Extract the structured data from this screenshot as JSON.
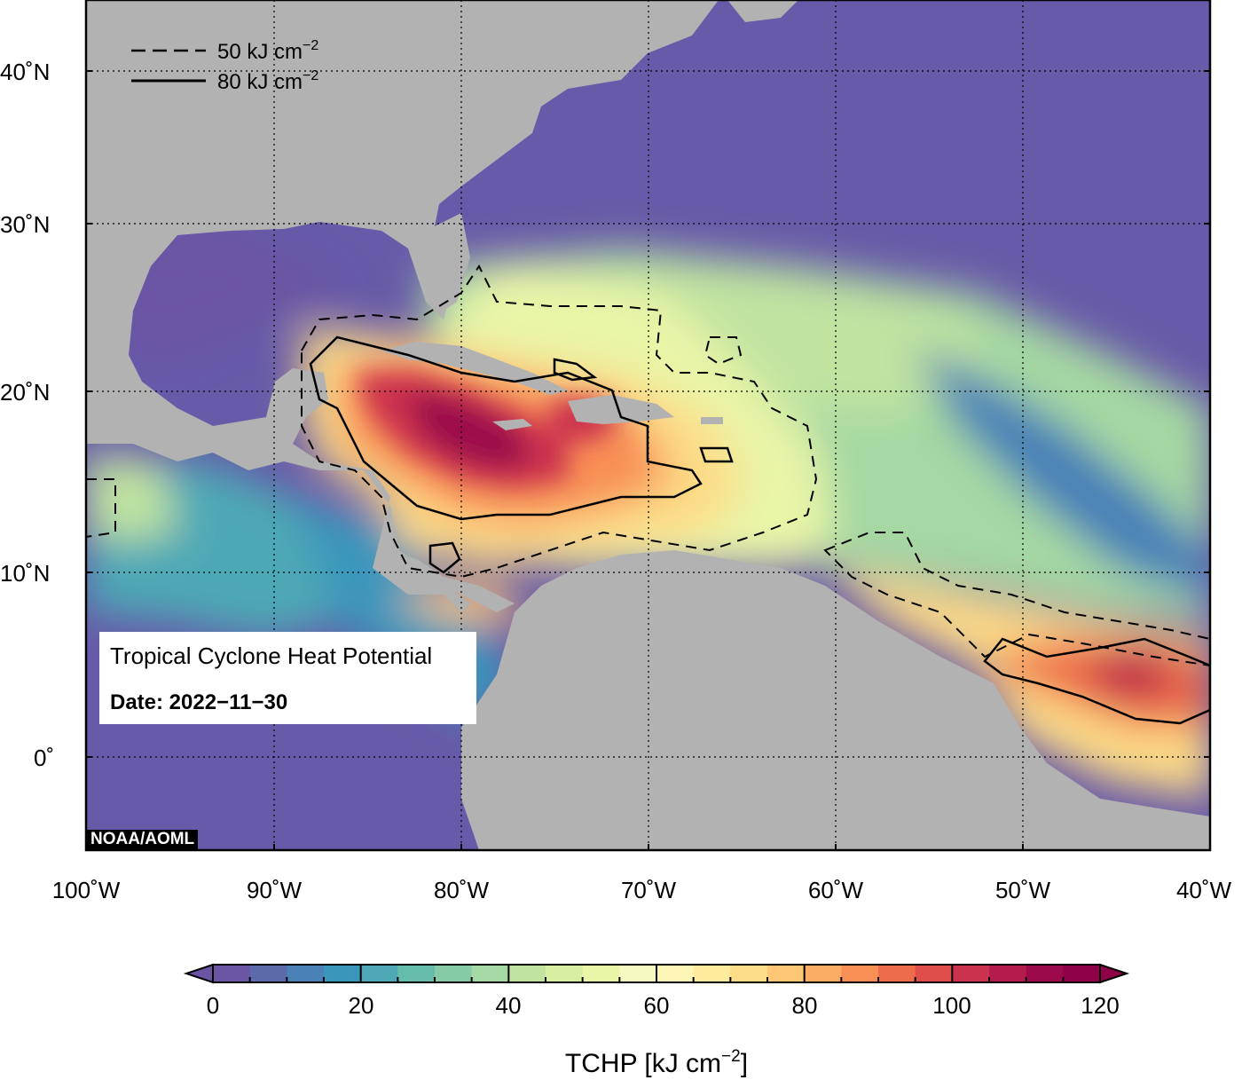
{
  "map": {
    "credit": "NOAA/AOML",
    "info_title": "Tropical Cyclone Heat Potential",
    "info_date": "Date: 2022−11−30",
    "lat_labels": [
      "40˚N",
      "30˚N",
      "20˚N",
      "10˚N",
      "0˚"
    ],
    "lon_labels": [
      "100˚W",
      "90˚W",
      "80˚W",
      "70˚W",
      "60˚W",
      "50˚W",
      "40˚W"
    ],
    "extent": {
      "lon_min": -100,
      "lon_max": -40,
      "lat_min": -5,
      "lat_max": 45
    },
    "colors": {
      "land": "#b2b2b2",
      "low": "#675aa8",
      "mid": "#abdca4",
      "high": "#a10e4d"
    }
  },
  "legend": {
    "dashed": {
      "prefix": "50 kJ cm",
      "sup": "−2"
    },
    "solid": {
      "prefix": "80 kJ cm",
      "sup": "−2"
    }
  },
  "colorbar": {
    "ticks": [
      "0",
      "20",
      "40",
      "60",
      "80",
      "100",
      "120"
    ],
    "title_prefix": "TCHP [kJ cm",
    "title_sup": "−2",
    "title_suffix": "]",
    "min": 0,
    "max": 120,
    "step": 5,
    "colors": [
      "#6a55a4",
      "#5a6aab",
      "#4a81b7",
      "#3a96bb",
      "#4ea8b6",
      "#66bcab",
      "#86cba5",
      "#a5d8a3",
      "#c0e3a0",
      "#d8eea0",
      "#e9f5a7",
      "#f5fac0",
      "#fdf6b6",
      "#feeb9d",
      "#fddc87",
      "#fdc776",
      "#fcad64",
      "#f88f54",
      "#ef6c4a",
      "#df4d4b",
      "#cb334d",
      "#b31c4c",
      "#9d0a4b",
      "#8e0047"
    ]
  }
}
